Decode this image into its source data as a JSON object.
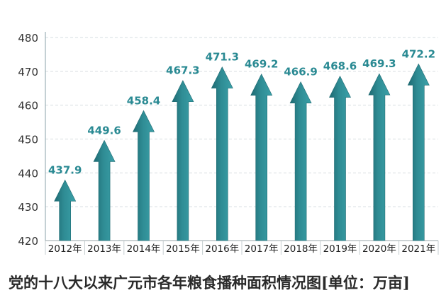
{
  "chart_data": {
    "type": "bar",
    "title": "党的十八大以来广元市各年粮食播种面积情况图[单位：万亩]",
    "categories": [
      "2012年",
      "2013年",
      "2014年",
      "2015年",
      "2016年",
      "2017年",
      "2018年",
      "2019年",
      "2020年",
      "2021年"
    ],
    "values": [
      437.9,
      449.6,
      458.4,
      467.3,
      471.3,
      469.2,
      466.9,
      468.6,
      469.3,
      472.2
    ],
    "value_labels": [
      "437.9",
      "449.6",
      "458.4",
      "467.3",
      "471.3",
      "469.2",
      "466.9",
      "468.6",
      "469.3",
      "472.2"
    ],
    "ylim": [
      420,
      480
    ],
    "yticks": [
      420,
      430,
      440,
      450,
      460,
      470,
      480
    ],
    "ytick_labels": [
      "420",
      "430",
      "440",
      "450",
      "460",
      "470",
      "480"
    ],
    "grid": true,
    "mark_style": "upward-arrow",
    "colors": {
      "arrow": "#2f8c94",
      "arrow_dark": "#1e6a72",
      "label": "#2a8a93",
      "grid": "#d6dde0",
      "axis": "#8aa2a8"
    }
  }
}
